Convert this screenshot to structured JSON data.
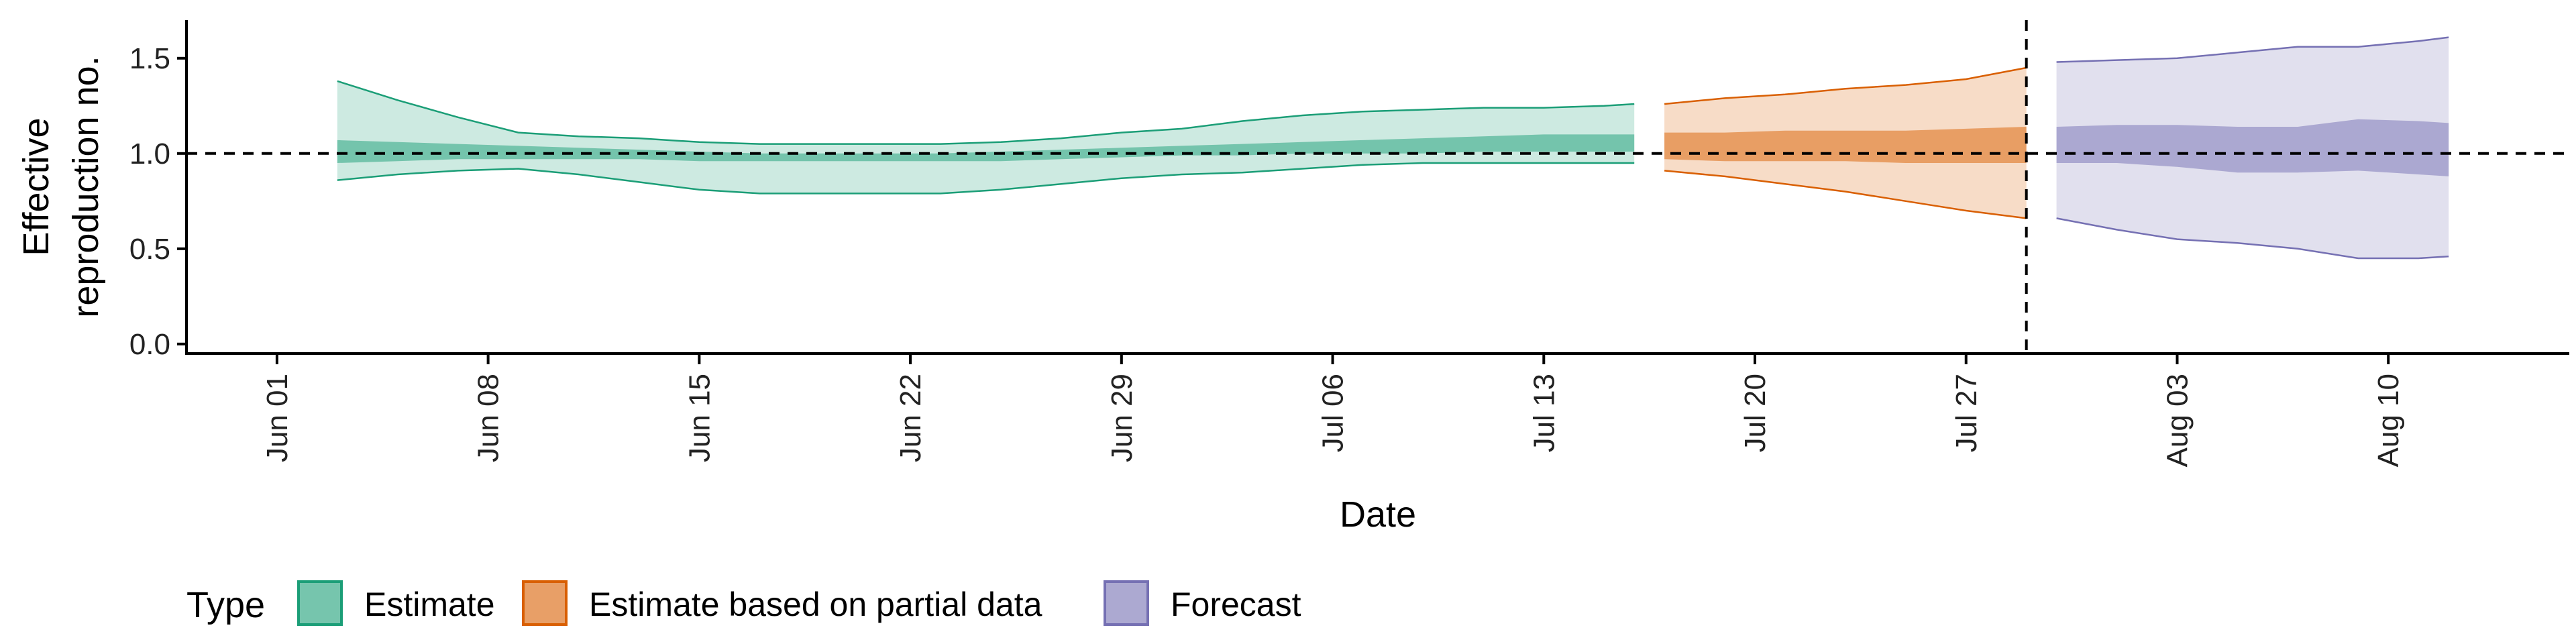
{
  "chart_data": {
    "type": "area",
    "title": "",
    "xlabel": "Date",
    "ylabel_lines": [
      "Effective",
      "reproduction no."
    ],
    "xlim": [
      "2020-05-29",
      "2020-08-16"
    ],
    "ylim": [
      -0.05,
      1.7
    ],
    "x_ticks": [
      "2020-06-01",
      "2020-06-08",
      "2020-06-15",
      "2020-06-22",
      "2020-06-29",
      "2020-07-06",
      "2020-07-13",
      "2020-07-20",
      "2020-07-27",
      "2020-08-03",
      "2020-08-10"
    ],
    "x_tick_labels": [
      "Jun 01",
      "Jun 08",
      "Jun 15",
      "Jun 22",
      "Jun 29",
      "Jul 06",
      "Jul 13",
      "Jul 20",
      "Jul 27",
      "Aug 03",
      "Aug 10"
    ],
    "y_ticks": [
      0.0,
      0.5,
      1.0,
      1.5
    ],
    "y_tick_labels": [
      "0.0",
      "0.5",
      "1.0",
      "1.5"
    ],
    "reference_hline": 1.0,
    "reference_vline": "2020-07-29",
    "legend": {
      "title": "Type",
      "position": "bottom-left"
    },
    "series": [
      {
        "name": "Estimate",
        "fill": "#1b9e77",
        "x": [
          "2020-06-03",
          "2020-06-05",
          "2020-06-07",
          "2020-06-09",
          "2020-06-11",
          "2020-06-13",
          "2020-06-15",
          "2020-06-17",
          "2020-06-19",
          "2020-06-21",
          "2020-06-23",
          "2020-06-25",
          "2020-06-27",
          "2020-06-29",
          "2020-07-01",
          "2020-07-03",
          "2020-07-05",
          "2020-07-07",
          "2020-07-09",
          "2020-07-11",
          "2020-07-13",
          "2020-07-15",
          "2020-07-16"
        ],
        "outer_upper": [
          1.38,
          1.28,
          1.19,
          1.11,
          1.09,
          1.08,
          1.06,
          1.05,
          1.05,
          1.05,
          1.05,
          1.06,
          1.08,
          1.11,
          1.13,
          1.17,
          1.2,
          1.22,
          1.23,
          1.24,
          1.24,
          1.25,
          1.26
        ],
        "outer_lower": [
          0.86,
          0.89,
          0.91,
          0.92,
          0.89,
          0.85,
          0.81,
          0.79,
          0.79,
          0.79,
          0.79,
          0.81,
          0.84,
          0.87,
          0.89,
          0.9,
          0.92,
          0.94,
          0.95,
          0.95,
          0.95,
          0.95,
          0.95
        ],
        "inner_upper": [
          1.07,
          1.06,
          1.05,
          1.04,
          1.03,
          1.02,
          1.01,
          1.0,
          1.0,
          1.0,
          1.0,
          1.01,
          1.02,
          1.03,
          1.04,
          1.05,
          1.06,
          1.07,
          1.08,
          1.09,
          1.1,
          1.1,
          1.1
        ],
        "inner_lower": [
          0.95,
          0.96,
          0.97,
          0.97,
          0.97,
          0.97,
          0.96,
          0.96,
          0.96,
          0.96,
          0.96,
          0.96,
          0.97,
          0.98,
          0.99,
          0.99,
          1.0,
          1.0,
          1.0,
          1.01,
          1.01,
          1.01,
          1.01
        ]
      },
      {
        "name": "Estimate based on partial data",
        "fill": "#d95f02",
        "x": [
          "2020-07-17",
          "2020-07-19",
          "2020-07-21",
          "2020-07-23",
          "2020-07-25",
          "2020-07-27",
          "2020-07-29"
        ],
        "outer_upper": [
          1.26,
          1.29,
          1.31,
          1.34,
          1.36,
          1.39,
          1.45
        ],
        "outer_lower": [
          0.91,
          0.88,
          0.84,
          0.8,
          0.75,
          0.7,
          0.66
        ],
        "inner_upper": [
          1.11,
          1.11,
          1.12,
          1.12,
          1.12,
          1.13,
          1.14
        ],
        "inner_lower": [
          0.97,
          0.96,
          0.96,
          0.96,
          0.95,
          0.95,
          0.95
        ]
      },
      {
        "name": "Forecast",
        "fill": "#7570b3",
        "x": [
          "2020-07-30",
          "2020-08-01",
          "2020-08-03",
          "2020-08-05",
          "2020-08-07",
          "2020-08-09",
          "2020-08-11",
          "2020-08-12"
        ],
        "outer_upper": [
          1.48,
          1.49,
          1.5,
          1.53,
          1.56,
          1.56,
          1.59,
          1.61
        ],
        "outer_lower": [
          0.66,
          0.6,
          0.55,
          0.53,
          0.5,
          0.45,
          0.45,
          0.46
        ],
        "inner_upper": [
          1.14,
          1.15,
          1.15,
          1.14,
          1.14,
          1.18,
          1.17,
          1.16
        ],
        "inner_lower": [
          0.95,
          0.95,
          0.93,
          0.9,
          0.9,
          0.91,
          0.89,
          0.88
        ]
      }
    ]
  }
}
